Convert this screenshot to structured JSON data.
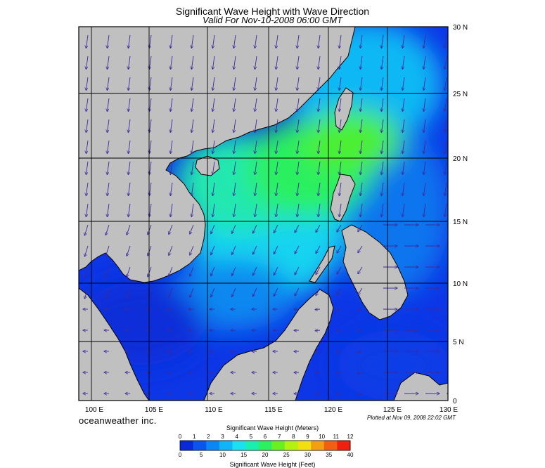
{
  "header": {
    "title": "Significant Wave Height with Wave Direction",
    "subtitle": "Valid For Nov-10-2008 06:00 GMT"
  },
  "map": {
    "lon_range": [
      99,
      130
    ],
    "lat_range": [
      0,
      30
    ],
    "lon_labels": [
      "100 E",
      "105 E",
      "110 E",
      "115 E",
      "120 E",
      "125 E",
      "130 E"
    ],
    "lat_labels": [
      "30 N",
      "25 N",
      "20 N",
      "15 N",
      "10 N",
      "5 N",
      "0"
    ],
    "land_color": "#c0c0c0",
    "grid_color": "#000000",
    "arrow_color": "#3d2a9c"
  },
  "footer": {
    "brand": "oceanweather inc.",
    "plotted": "Plotted at Nov 09, 2008 22:02 GMT"
  },
  "legend": {
    "title_top": "Significant Wave Height (Meters)",
    "meter_ticks": [
      "0",
      "1",
      "2",
      "3",
      "4",
      "5",
      "6",
      "7",
      "8",
      "9",
      "10",
      "11",
      "12"
    ],
    "feet_ticks": [
      "0",
      "5",
      "10",
      "15",
      "20",
      "25",
      "30",
      "35",
      "40"
    ],
    "title_bottom": "Significant Wave Height (Feet)",
    "colors": [
      "#0a2ad8",
      "#0a55ee",
      "#0a86f5",
      "#12b4f8",
      "#1ae0f0",
      "#19f0b0",
      "#2cf060",
      "#6af020",
      "#b4f010",
      "#f0e010",
      "#f0a010",
      "#f06010",
      "#f02010"
    ]
  }
}
